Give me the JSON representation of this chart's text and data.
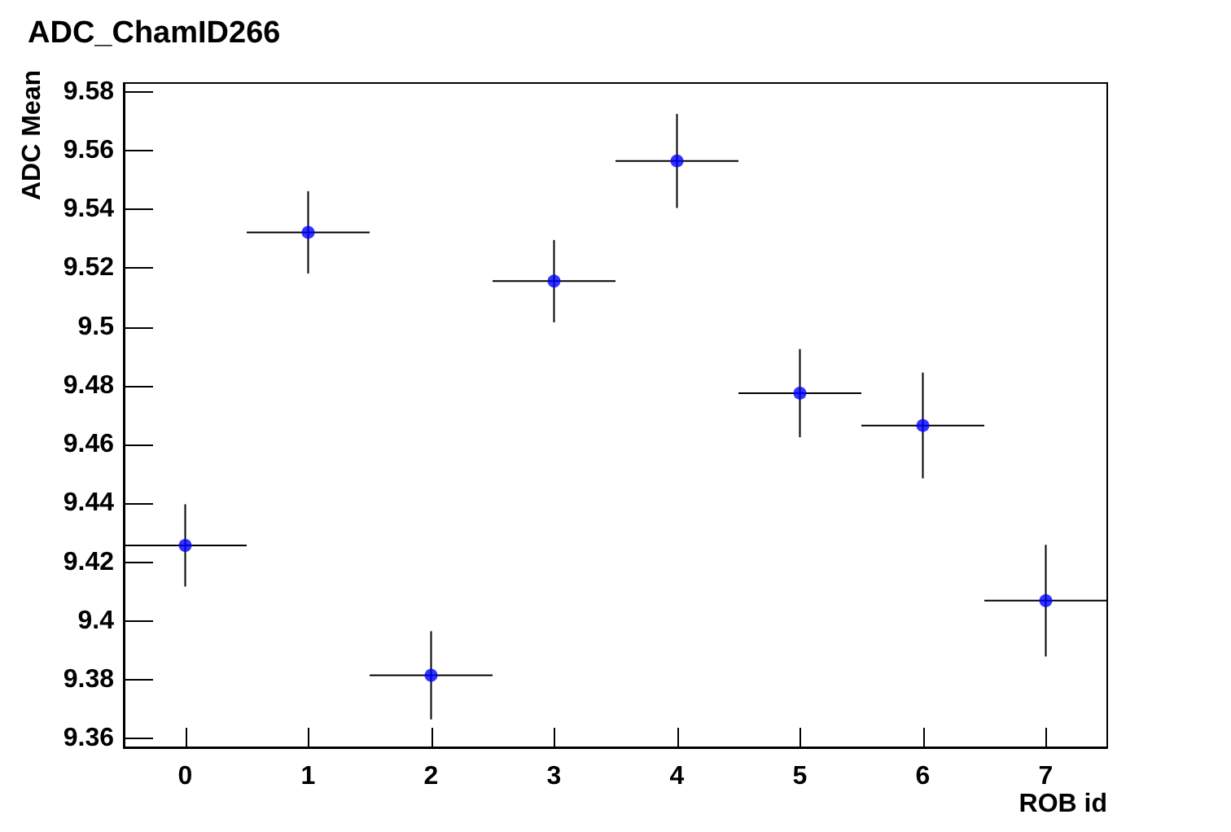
{
  "chart_data": {
    "type": "scatter",
    "title": "ADC_ChamID266",
    "xlabel": "ROB id",
    "ylabel": "ADC Mean",
    "x": [
      0,
      1,
      2,
      3,
      4,
      5,
      6,
      7
    ],
    "series": [
      {
        "color": "#0000ff",
        "values": [
          9.4257,
          9.5322,
          9.3815,
          9.5156,
          9.5565,
          9.4775,
          9.4665,
          9.4069
        ],
        "errors": [
          0.014,
          0.014,
          0.015,
          0.014,
          0.016,
          0.015,
          0.018,
          0.019
        ],
        "xerrors": [
          0.5,
          0.5,
          0.5,
          0.5,
          0.5,
          0.5,
          0.5,
          0.5
        ]
      }
    ],
    "xlim": [
      -0.5,
      7.5
    ],
    "xticks": [
      0,
      1,
      2,
      3,
      4,
      5,
      6,
      7
    ],
    "ylim": [
      9.357,
      9.583
    ],
    "yticks": [
      9.36,
      9.38,
      9.4,
      9.42,
      9.44,
      9.46,
      9.48,
      9.5,
      9.52,
      9.54,
      9.56,
      9.58
    ],
    "marker": "circle",
    "grid": false
  }
}
